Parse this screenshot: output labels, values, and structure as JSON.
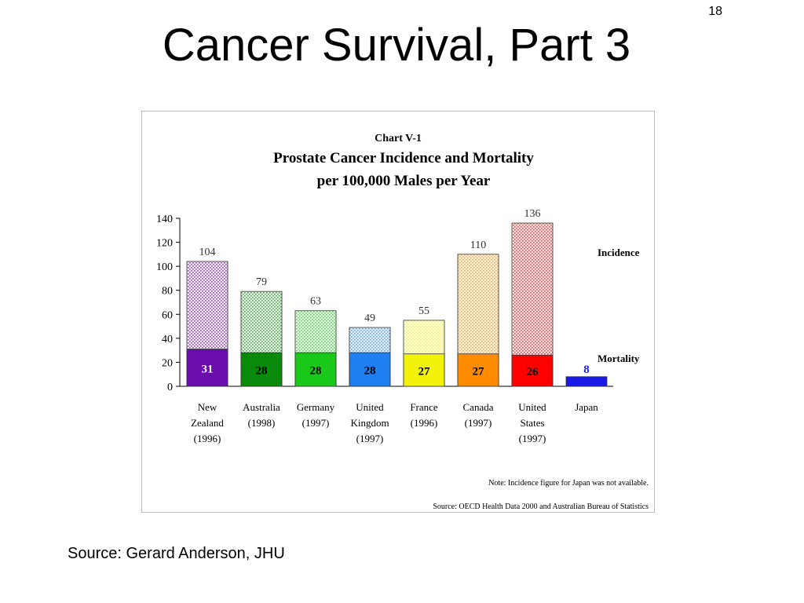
{
  "slide": {
    "number": "18",
    "title": "Cancer Survival, Part 3",
    "source": "Source: Gerard Anderson, JHU"
  },
  "chart_data": {
    "type": "bar",
    "kicker": "Chart V-1",
    "title": "Prostate Cancer Incidence and Mortality",
    "subtitle": "per 100,000 Males per Year",
    "xlabel": "",
    "ylabel": "",
    "ylim": [
      0,
      140
    ],
    "yticks": [
      0,
      20,
      40,
      60,
      80,
      100,
      120,
      140
    ],
    "grid": false,
    "legend_position": "right",
    "categories": [
      [
        "New",
        "Zealand",
        "(1996)"
      ],
      [
        "Australia",
        "(1998)"
      ],
      [
        "Germany",
        "(1997)"
      ],
      [
        "United",
        "Kingdom",
        "(1997)"
      ],
      [
        "France",
        "(1996)"
      ],
      [
        "Canada",
        "(1997)"
      ],
      [
        "United",
        "States",
        "(1997)"
      ],
      [
        "Japan"
      ]
    ],
    "colors": [
      "#6a0dad",
      "#0a8a0a",
      "#19c819",
      "#1e7ff0",
      "#f2f20a",
      "#ff8c00",
      "#ff0000",
      "#1a1ae6"
    ],
    "series": [
      {
        "name": "Incidence",
        "values": [
          104,
          79,
          63,
          49,
          55,
          110,
          136,
          null
        ],
        "labels": [
          "104",
          "79",
          "63",
          "49",
          "55",
          "110",
          "136",
          ""
        ]
      },
      {
        "name": "Mortality",
        "values": [
          31,
          28,
          28,
          28,
          27,
          27,
          26,
          8
        ],
        "labels": [
          "31",
          "28",
          "28",
          "28",
          "27",
          "27",
          "26",
          "8"
        ]
      }
    ],
    "notes": [
      "Note: Incidence figure for Japan was not available.",
      "Source: OECD Health Data 2000 and Australian Bureau of Statistics"
    ]
  }
}
